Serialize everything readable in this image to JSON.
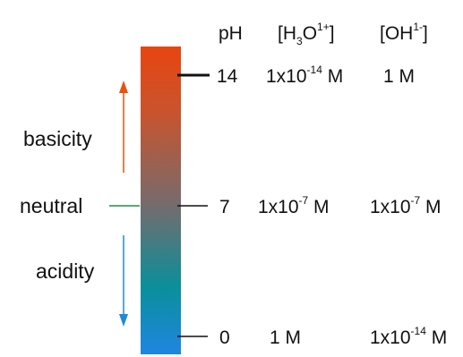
{
  "headers": {
    "ph": "pH",
    "h3o": {
      "open": "[H",
      "sub": "3",
      "mid": "O",
      "sup": "1+",
      "close": "]"
    },
    "oh": {
      "open": "[OH",
      "sup": "1-",
      "close": "]"
    }
  },
  "rows": [
    {
      "ph": "14",
      "h3o": {
        "base": "1x10",
        "exp": "-14",
        "unit": " M"
      },
      "oh": {
        "base": "1 M",
        "exp": "",
        "unit": ""
      }
    },
    {
      "ph": "7",
      "h3o": {
        "base": "1x10",
        "exp": "-7",
        "unit": " M"
      },
      "oh": {
        "base": "1x10",
        "exp": "-7",
        "unit": " M"
      }
    },
    {
      "ph": "0",
      "h3o": {
        "base": "1 M",
        "exp": "",
        "unit": ""
      },
      "oh": {
        "base": "1x10",
        "exp": "-14",
        "unit": " M"
      }
    }
  ],
  "labels": {
    "basicity": "basicity",
    "neutral": "neutral",
    "acidity": "acidity"
  },
  "colors": {
    "basic_top": "#e84510",
    "neutral_mid": "#7a6a6a",
    "acid_teal": "#0a8f9a",
    "acid_bottom": "#1f86e0",
    "basicity_text": "#e8520e",
    "neutral_text": "#1f8f4a",
    "acidity_text": "#1f8ad6",
    "ink": "#111111"
  }
}
